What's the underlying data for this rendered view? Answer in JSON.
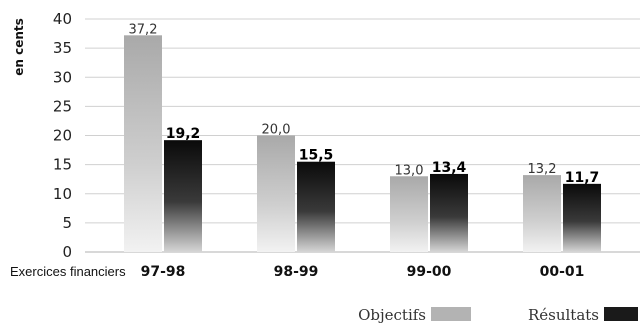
{
  "chart_data": {
    "type": "bar",
    "title": "",
    "ylabel": "en cents",
    "xlabel": "Exercices financiers",
    "ylim": [
      0,
      40
    ],
    "yticks": [
      0,
      5,
      10,
      15,
      20,
      25,
      30,
      35,
      40
    ],
    "categories": [
      "97-98",
      "98-99",
      "99-00",
      "00-01"
    ],
    "series": [
      {
        "name": "Objectifs",
        "values": [
          37.2,
          20.0,
          13.0,
          13.2
        ],
        "labels": [
          "37,2",
          "20,0",
          "13,0",
          "13,2"
        ],
        "color": "#b3b3b3"
      },
      {
        "name": "Résultats",
        "values": [
          19.2,
          15.5,
          13.4,
          11.7
        ],
        "labels": [
          "19,2",
          "15,5",
          "13,4",
          "11,7"
        ],
        "color": "#1a1a1a"
      }
    ],
    "grid": true,
    "legend": "bottom-right"
  }
}
